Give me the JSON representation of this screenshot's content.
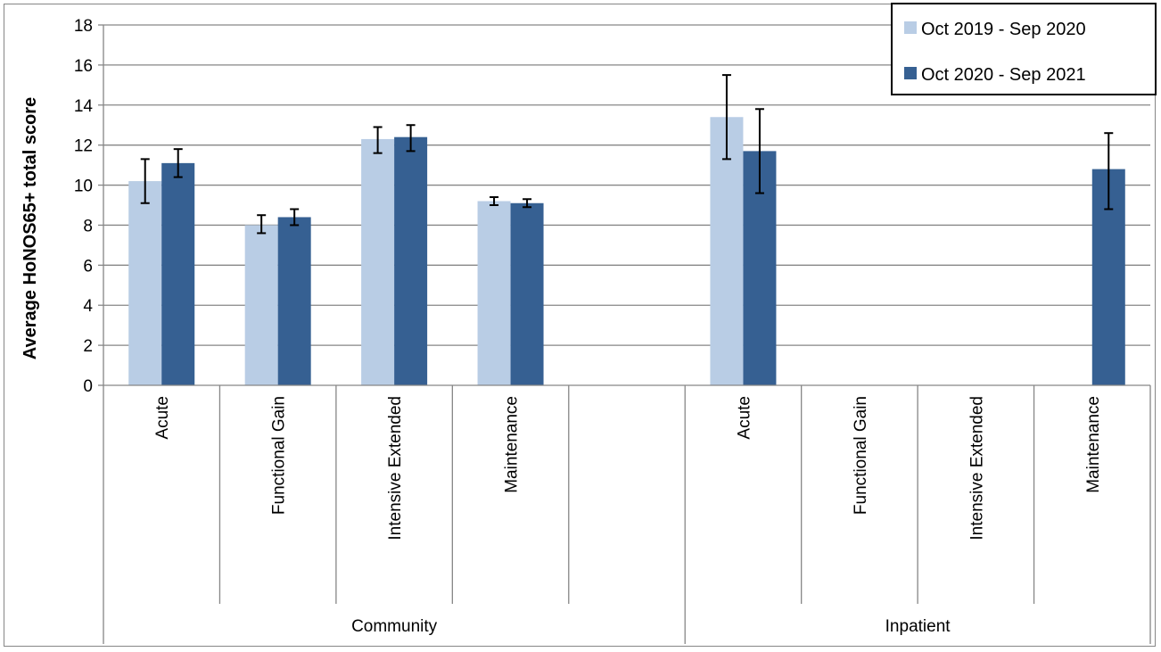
{
  "chart_data": {
    "type": "bar",
    "title": "",
    "xlabel": "",
    "ylabel": "Average HoNOS65+ total score",
    "ylim": [
      0,
      18
    ],
    "yticks": [
      0,
      2,
      4,
      6,
      8,
      10,
      12,
      14,
      16,
      18
    ],
    "grid": true,
    "legend_position": "top-right",
    "groups": [
      {
        "name": "Community",
        "categories": [
          "Acute",
          "Functional Gain",
          "Intensive Extended",
          "Maintenance",
          ""
        ]
      },
      {
        "name": "Inpatient",
        "categories": [
          "Acute",
          "Functional Gain",
          "Intensive Extended",
          "Maintenance"
        ]
      }
    ],
    "series": [
      {
        "name": "Oct 2019 - Sep 2020",
        "color": "#b9cde5",
        "values": [
          10.2,
          8.0,
          12.3,
          9.2,
          null,
          13.4,
          null,
          null,
          null
        ],
        "error_low": [
          9.1,
          7.6,
          11.6,
          9.0,
          null,
          11.3,
          null,
          null,
          null
        ],
        "error_high": [
          11.3,
          8.5,
          12.9,
          9.4,
          null,
          15.5,
          null,
          null,
          null
        ]
      },
      {
        "name": "Oct 2020 - Sep 2021",
        "color": "#366092",
        "values": [
          11.1,
          8.4,
          12.4,
          9.1,
          null,
          11.7,
          null,
          null,
          10.8
        ],
        "error_low": [
          10.4,
          8.0,
          11.7,
          8.9,
          null,
          9.6,
          null,
          null,
          8.8
        ],
        "error_high": [
          11.8,
          8.8,
          13.0,
          9.3,
          null,
          13.8,
          null,
          null,
          12.6
        ]
      }
    ]
  }
}
